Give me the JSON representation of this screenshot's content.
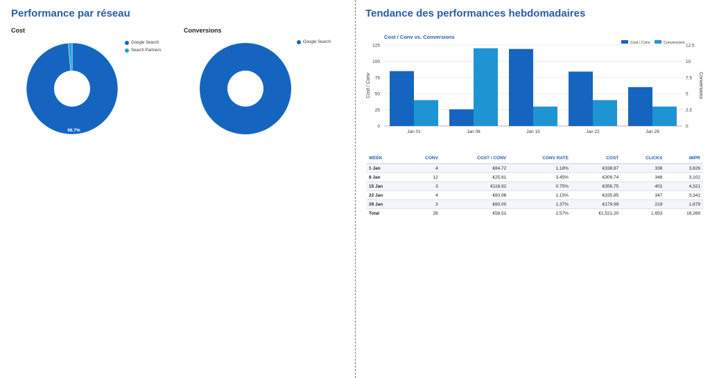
{
  "left": {
    "title": "Performance par réseau",
    "cost_title": "Cost",
    "conversions_title": "Conversions"
  },
  "right": {
    "title": "Tendance des performances hebdomadaires"
  },
  "chart_data": [
    {
      "type": "pie",
      "title": "Cost",
      "donut": true,
      "labels": [
        "Google Search",
        "Search Partners"
      ],
      "values": [
        98.7,
        1.3
      ],
      "data_labels": [
        "98.7%",
        ""
      ],
      "legend": "top-right",
      "colors": [
        "#1565c0",
        "#1ca0e0"
      ]
    },
    {
      "type": "pie",
      "title": "Conversions",
      "donut": true,
      "labels": [
        "Google Search"
      ],
      "values": [
        100
      ],
      "legend": "top-right",
      "colors": [
        "#1565c0"
      ]
    },
    {
      "type": "bar",
      "title": "Cost / Conv vs. Conversions",
      "categories": [
        "Jan 01",
        "Jan 08",
        "Jan 15",
        "Jan 22",
        "Jan 29"
      ],
      "series": [
        {
          "name": "Cost / Conv",
          "values": [
            84.72,
            25.81,
            118.92,
            83.96,
            60.0
          ],
          "axis": "left",
          "color": "#1565c0"
        },
        {
          "name": "Conversions",
          "values": [
            4,
            12,
            3,
            4,
            3
          ],
          "axis": "right",
          "color": "#1e95d2"
        }
      ],
      "ylabel": "Cost / Conv",
      "y2label": "Conversions",
      "ylim": [
        0,
        125
      ],
      "yticks": [
        "0",
        "25",
        "50",
        "75",
        "100",
        "125"
      ],
      "y2lim": [
        0,
        12.5
      ],
      "y2ticks": [
        "0",
        "2.5",
        "5",
        "7.5",
        "10",
        "12.5"
      ],
      "grid": true,
      "legend": "top-right"
    }
  ],
  "table": {
    "headers": [
      "WEEK",
      "CONV",
      "COST / CONV",
      "CONV RATE",
      "COST",
      "CLICKS",
      "IMPR"
    ],
    "rows": [
      [
        "1 Jan",
        "4",
        "€84.72",
        "1.18%",
        "€338.87",
        "338",
        "3,826"
      ],
      [
        "8 Jan",
        "12",
        "€25.81",
        "3.45%",
        "€309.74",
        "348",
        "3,102"
      ],
      [
        "15 Jan",
        "3",
        "€118.92",
        "0.75%",
        "€356.75",
        "401",
        "4,321"
      ],
      [
        "22 Jan",
        "4",
        "€83.96",
        "1.15%",
        "€335.85",
        "347",
        "3,341"
      ],
      [
        "29 Jan",
        "3",
        "€60.00",
        "1.37%",
        "€179.99",
        "219",
        "1,679"
      ]
    ],
    "total": [
      "Total",
      "26",
      "€58.51",
      "1.57%",
      "€1,521.20",
      "1,653",
      "16,269"
    ]
  }
}
